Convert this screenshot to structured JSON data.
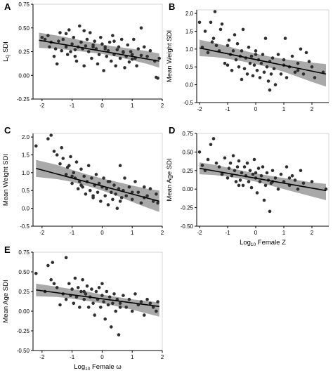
{
  "colors": {
    "point": "#2f2f2f",
    "fit_line": "#000000",
    "band": "#9a9a9a",
    "frame": "#000000"
  },
  "chart_data": [
    {
      "type": "scatter",
      "panel": "A",
      "ylabel": "L",
      "ylabel_sub": "Q",
      "ylabel_rest": " SDI",
      "xlabel": "",
      "xlim": [
        -2.3,
        2.0
      ],
      "ylim": [
        -0.25,
        0.75
      ],
      "xticks": [
        -2,
        -1,
        0,
        1,
        2
      ],
      "xtick_labels": [
        "-2",
        "-1",
        "0",
        "1",
        "2"
      ],
      "yticks": [
        -0.25,
        0,
        0.25,
        0.5,
        0.75
      ],
      "ytick_labels": [
        "-0.25",
        "0.00",
        "0.25",
        "0.50",
        "0.75"
      ],
      "fit": {
        "x": [
          -2.1,
          1.9
        ],
        "y": [
          0.37,
          0.15
        ]
      },
      "band": {
        "x": [
          -2.1,
          -1.5,
          -1,
          -0.5,
          0,
          0.5,
          1,
          1.5,
          1.9
        ],
        "lower": [
          0.29,
          0.28,
          0.265,
          0.245,
          0.225,
          0.195,
          0.16,
          0.12,
          0.08
        ],
        "upper": [
          0.45,
          0.42,
          0.39,
          0.355,
          0.325,
          0.3,
          0.28,
          0.255,
          0.23
        ]
      },
      "points": {
        "x": [
          -2.0,
          -1.9,
          -1.8,
          -1.75,
          -1.7,
          -1.6,
          -1.55,
          -1.5,
          -1.45,
          -1.4,
          -1.35,
          -1.3,
          -1.2,
          -1.15,
          -1.1,
          -1.05,
          -1.0,
          -0.95,
          -0.9,
          -0.85,
          -0.8,
          -0.75,
          -0.7,
          -0.65,
          -0.6,
          -0.55,
          -0.5,
          -0.45,
          -0.4,
          -0.35,
          -0.3,
          -0.25,
          -0.2,
          -0.15,
          -0.1,
          -0.05,
          0.0,
          0.05,
          0.1,
          0.15,
          0.2,
          0.25,
          0.3,
          0.35,
          0.4,
          0.45,
          0.5,
          0.55,
          0.6,
          0.65,
          0.7,
          0.75,
          0.8,
          0.85,
          0.9,
          0.95,
          1.0,
          1.05,
          1.1,
          1.15,
          1.2,
          1.3,
          1.4,
          1.5,
          1.6,
          1.75,
          1.8,
          1.85,
          1.9,
          -1.2,
          -0.9,
          -0.6,
          -0.3,
          0.1,
          0.4,
          0.7,
          1.0,
          1.3
        ],
        "y": [
          0.4,
          0.38,
          0.42,
          0.3,
          0.35,
          0.2,
          0.28,
          0.12,
          0.36,
          0.45,
          0.26,
          0.38,
          0.3,
          0.22,
          0.48,
          0.25,
          0.33,
          0.4,
          0.27,
          0.15,
          0.3,
          0.52,
          0.35,
          0.28,
          0.1,
          0.31,
          0.38,
          0.25,
          0.45,
          0.18,
          0.3,
          0.36,
          0.28,
          0.12,
          0.22,
          0.4,
          0.33,
          0.05,
          0.3,
          0.2,
          0.26,
          0.35,
          0.15,
          0.42,
          0.22,
          0.1,
          0.27,
          0.3,
          0.18,
          0.38,
          0.25,
          0.08,
          0.2,
          0.32,
          0.14,
          0.25,
          0.22,
          0.38,
          0.18,
          0.1,
          0.28,
          0.5,
          0.3,
          0.2,
          0.26,
          0.15,
          -0.02,
          -0.03,
          0.18,
          0.44,
          0.2,
          0.47,
          0.32,
          0.28,
          0.36,
          0.24,
          0.17,
          0.21
        ]
      }
    },
    {
      "type": "scatter",
      "panel": "B",
      "ylabel": "Mean Weight SDI",
      "xlabel": "",
      "xlim": [
        -2.1,
        2.6
      ],
      "ylim": [
        -0.5,
        2.1
      ],
      "xticks": [
        -2,
        -1,
        0,
        1,
        2
      ],
      "xtick_labels": [
        "-2",
        "-1",
        "0",
        "1",
        "2"
      ],
      "yticks": [
        -0.5,
        0,
        0.5,
        1,
        1.5,
        2
      ],
      "ytick_labels": [
        "-0.5",
        "0.0",
        "0.5",
        "1.0",
        "1.5",
        "2.0"
      ],
      "fit": {
        "x": [
          -2.0,
          2.5
        ],
        "y": [
          1.03,
          0.3
        ]
      },
      "band": {
        "x": [
          -2.0,
          -1.5,
          -1,
          -0.5,
          0,
          0.5,
          1,
          1.5,
          2.0,
          2.5
        ],
        "lower": [
          0.8,
          0.78,
          0.73,
          0.66,
          0.58,
          0.48,
          0.36,
          0.22,
          0.08,
          -0.05
        ],
        "upper": [
          1.26,
          1.18,
          1.08,
          0.97,
          0.87,
          0.79,
          0.72,
          0.67,
          0.62,
          0.58
        ]
      },
      "points": {
        "x": [
          -2.0,
          -1.9,
          -1.8,
          -1.7,
          -1.6,
          -1.55,
          -1.5,
          -1.45,
          -1.4,
          -1.3,
          -1.25,
          -1.2,
          -1.1,
          -1.0,
          -0.95,
          -0.9,
          -0.85,
          -0.8,
          -0.75,
          -0.7,
          -0.65,
          -0.6,
          -0.55,
          -0.5,
          -0.45,
          -0.4,
          -0.35,
          -0.3,
          -0.25,
          -0.2,
          -0.15,
          -0.1,
          -0.05,
          0.0,
          0.05,
          0.1,
          0.15,
          0.2,
          0.25,
          0.3,
          0.35,
          0.4,
          0.45,
          0.5,
          0.55,
          0.6,
          0.65,
          0.7,
          0.8,
          0.9,
          1.0,
          1.05,
          1.1,
          1.2,
          1.3,
          1.4,
          1.5,
          1.6,
          1.7,
          1.8,
          1.9,
          2.0,
          2.1,
          2.4,
          -1.0,
          -0.5,
          0.0,
          0.5,
          1.0,
          1.5
        ],
        "y": [
          1.75,
          1.05,
          1.5,
          0.9,
          1.75,
          1.2,
          1.3,
          2.05,
          1.1,
          0.95,
          1.55,
          1.7,
          0.6,
          1.1,
          1.25,
          0.85,
          0.4,
          0.95,
          1.4,
          0.7,
          1.15,
          0.5,
          0.8,
          0.95,
          1.55,
          0.45,
          0.75,
          0.3,
          1.05,
          0.6,
          0.8,
          0.25,
          0.55,
          0.95,
          0.4,
          0.7,
          0.2,
          0.6,
          0.85,
          0.35,
          1.3,
          0.5,
          0.1,
          0.65,
          0.3,
          0.75,
          0.45,
          0.0,
          0.85,
          0.3,
          0.55,
          1.3,
          0.2,
          0.5,
          0.8,
          0.35,
          0.6,
          1.0,
          0.3,
          0.9,
          0.65,
          0.5,
          0.2,
          0.35,
          0.55,
          0.15,
          0.85,
          -0.15,
          0.7,
          0.4
        ]
      }
    },
    {
      "type": "scatter",
      "panel": "C",
      "ylabel": "Mean Weight SDI",
      "xlabel": "",
      "xlim": [
        -2.3,
        2.0
      ],
      "ylim": [
        -0.5,
        2.1
      ],
      "xticks": [
        -2,
        -1,
        0,
        1,
        2
      ],
      "xtick_labels": [
        "-2",
        "-1",
        "0",
        "1",
        "2"
      ],
      "yticks": [
        -0.5,
        0,
        0.5,
        1,
        1.5,
        2
      ],
      "ytick_labels": [
        "-0.5",
        "0.0",
        "0.5",
        "1.0",
        "1.5",
        "2.0"
      ],
      "fit": {
        "x": [
          -2.2,
          1.9
        ],
        "y": [
          1.12,
          0.2
        ]
      },
      "band": {
        "x": [
          -2.2,
          -1.5,
          -1,
          -0.5,
          0,
          0.5,
          1,
          1.5,
          1.9
        ],
        "lower": [
          0.88,
          0.82,
          0.74,
          0.63,
          0.5,
          0.35,
          0.18,
          0.02,
          -0.1
        ],
        "upper": [
          1.36,
          1.22,
          1.08,
          0.95,
          0.84,
          0.74,
          0.64,
          0.55,
          0.5
        ]
      },
      "points": {
        "x": [
          -2.2,
          -1.8,
          -1.7,
          -1.6,
          -1.5,
          -1.4,
          -1.35,
          -1.3,
          -1.2,
          -1.15,
          -1.1,
          -1.05,
          -1.0,
          -0.95,
          -0.9,
          -0.85,
          -0.8,
          -0.75,
          -0.7,
          -0.65,
          -0.6,
          -0.55,
          -0.5,
          -0.45,
          -0.4,
          -0.35,
          -0.3,
          -0.25,
          -0.2,
          -0.15,
          -0.1,
          -0.05,
          0.0,
          0.05,
          0.1,
          0.15,
          0.2,
          0.25,
          0.3,
          0.35,
          0.4,
          0.45,
          0.5,
          0.55,
          0.6,
          0.65,
          0.7,
          0.75,
          0.8,
          0.9,
          1.0,
          1.1,
          1.2,
          1.3,
          1.4,
          1.5,
          1.6,
          1.7,
          1.8,
          1.85,
          -1.0,
          -0.7,
          -0.3,
          0.2,
          0.6,
          1.0,
          1.4
        ],
        "y": [
          1.75,
          1.95,
          2.05,
          1.6,
          1.5,
          1.25,
          1.7,
          1.4,
          0.95,
          1.15,
          1.2,
          1.45,
          0.7,
          1.0,
          0.85,
          1.3,
          0.55,
          0.75,
          1.1,
          0.6,
          0.9,
          0.4,
          0.75,
          1.2,
          0.5,
          0.85,
          0.3,
          0.65,
          0.95,
          0.45,
          0.7,
          0.2,
          0.6,
          0.85,
          0.35,
          0.55,
          0.1,
          0.75,
          0.45,
          0.25,
          0.65,
          0.4,
          0.0,
          0.55,
          1.2,
          0.3,
          0.5,
          0.85,
          0.35,
          0.6,
          0.25,
          0.75,
          0.45,
          0.15,
          0.6,
          0.35,
          0.55,
          0.2,
          0.4,
          0.15,
          0.9,
          0.65,
          0.35,
          0.75,
          0.2,
          0.45,
          0.3
        ]
      }
    },
    {
      "type": "scatter",
      "panel": "D",
      "ylabel": "Mean Age SDI",
      "xlabel": "Log",
      "xlabel_sub": "10",
      "xlabel_rest": " Female Z",
      "xlim": [
        -2.1,
        2.6
      ],
      "ylim": [
        -0.5,
        0.75
      ],
      "xticks": [
        -2,
        -1,
        0,
        1,
        2
      ],
      "xtick_labels": [
        "-2",
        "-1",
        "0",
        "1",
        "2"
      ],
      "yticks": [
        -0.5,
        -0.25,
        0,
        0.25,
        0.5,
        0.75
      ],
      "ytick_labels": [
        "-0.50",
        "-0.25",
        "0.00",
        "0.25",
        "0.50",
        "0.75"
      ],
      "fit": {
        "x": [
          -2.0,
          2.5
        ],
        "y": [
          0.28,
          -0.02
        ]
      },
      "band": {
        "x": [
          -2.0,
          -1.5,
          -1,
          -0.5,
          0,
          0.5,
          1,
          1.5,
          2.0,
          2.5
        ],
        "lower": [
          0.2,
          0.19,
          0.17,
          0.14,
          0.1,
          0.05,
          0.0,
          -0.05,
          -0.1,
          -0.15
        ],
        "upper": [
          0.36,
          0.33,
          0.29,
          0.25,
          0.21,
          0.18,
          0.15,
          0.12,
          0.09,
          0.07
        ]
      },
      "points": {
        "x": [
          -2.0,
          -1.9,
          -1.8,
          -1.7,
          -1.6,
          -1.5,
          -1.4,
          -1.3,
          -1.2,
          -1.1,
          -1.0,
          -0.95,
          -0.9,
          -0.85,
          -0.8,
          -0.75,
          -0.7,
          -0.65,
          -0.6,
          -0.55,
          -0.5,
          -0.45,
          -0.4,
          -0.35,
          -0.3,
          -0.25,
          -0.2,
          -0.15,
          -0.1,
          -0.05,
          0.0,
          0.05,
          0.1,
          0.15,
          0.2,
          0.25,
          0.3,
          0.35,
          0.4,
          0.45,
          0.5,
          0.55,
          0.6,
          0.7,
          0.8,
          0.9,
          1.0,
          1.1,
          1.2,
          1.3,
          1.4,
          1.5,
          1.6,
          1.7,
          2.0,
          2.5,
          -1.2,
          -0.6,
          0.0,
          0.6,
          1.2
        ],
        "y": [
          0.5,
          0.32,
          0.25,
          0.4,
          0.6,
          0.68,
          0.35,
          0.3,
          0.2,
          0.42,
          0.15,
          0.28,
          0.35,
          0.18,
          0.45,
          0.25,
          0.1,
          0.3,
          0.38,
          0.12,
          0.22,
          0.05,
          0.3,
          0.18,
          0.35,
          0.1,
          0.25,
          0.02,
          0.2,
          0.4,
          0.15,
          -0.05,
          0.28,
          0.1,
          0.18,
          0.3,
          -0.15,
          0.05,
          0.22,
          0.12,
          -0.3,
          0.08,
          0.25,
          0.15,
          0.0,
          0.2,
          0.1,
          0.3,
          0.05,
          0.18,
          0.12,
          0.0,
          0.25,
          0.08,
          0.1,
          0.0,
          0.2,
          0.05,
          0.22,
          0.1,
          0.15
        ]
      }
    },
    {
      "type": "scatter",
      "panel": "E",
      "ylabel": "Mean Age SDI",
      "xlabel": "Log",
      "xlabel_sub": "10",
      "xlabel_rest": " Female ω",
      "xlim": [
        -2.3,
        2.0
      ],
      "ylim": [
        -0.5,
        0.75
      ],
      "xticks": [
        -2,
        -1,
        0,
        1,
        2
      ],
      "xtick_labels": [
        "-2",
        "-1",
        "0",
        "1",
        "2"
      ],
      "yticks": [
        -0.5,
        -0.25,
        0,
        0.25,
        0.5,
        0.75
      ],
      "ytick_labels": [
        "-0.50",
        "-0.25",
        "0.00",
        "0.25",
        "0.50",
        "0.75"
      ],
      "fit": {
        "x": [
          -2.2,
          1.9
        ],
        "y": [
          0.27,
          0.06
        ]
      },
      "band": {
        "x": [
          -2.2,
          -1.5,
          -1,
          -0.5,
          0,
          0.5,
          1,
          1.5,
          1.9
        ],
        "lower": [
          0.19,
          0.18,
          0.16,
          0.13,
          0.1,
          0.06,
          0.02,
          -0.03,
          -0.07
        ],
        "upper": [
          0.35,
          0.31,
          0.28,
          0.25,
          0.21,
          0.18,
          0.15,
          0.13,
          0.11
        ]
      },
      "points": {
        "x": [
          -2.2,
          -1.9,
          -1.8,
          -1.7,
          -1.65,
          -1.6,
          -1.5,
          -1.4,
          -1.3,
          -1.2,
          -1.1,
          -1.05,
          -1.0,
          -0.95,
          -0.9,
          -0.85,
          -0.8,
          -0.75,
          -0.7,
          -0.65,
          -0.6,
          -0.55,
          -0.5,
          -0.45,
          -0.4,
          -0.35,
          -0.3,
          -0.25,
          -0.2,
          -0.15,
          -0.1,
          -0.05,
          0.0,
          0.05,
          0.1,
          0.15,
          0.2,
          0.25,
          0.3,
          0.35,
          0.4,
          0.45,
          0.5,
          0.55,
          0.6,
          0.7,
          0.8,
          0.9,
          1.0,
          1.1,
          1.2,
          1.3,
          1.4,
          1.5,
          1.6,
          1.7,
          1.8,
          1.85,
          -1.2,
          -0.6,
          0.0,
          0.6
        ],
        "y": [
          0.48,
          0.25,
          0.58,
          0.4,
          0.62,
          0.35,
          0.3,
          0.08,
          0.22,
          0.68,
          0.35,
          0.2,
          0.28,
          0.1,
          0.42,
          0.18,
          0.3,
          0.05,
          0.25,
          0.4,
          0.15,
          0.22,
          0.32,
          0.05,
          0.18,
          0.28,
          0.1,
          -0.05,
          0.25,
          0.15,
          0.3,
          0.05,
          0.2,
          0.12,
          -0.1,
          0.25,
          0.08,
          0.18,
          -0.2,
          0.1,
          0.22,
          0.0,
          0.15,
          -0.3,
          0.1,
          0.2,
          0.05,
          0.15,
          0.0,
          0.22,
          0.08,
          0.12,
          -0.05,
          0.15,
          0.1,
          0.05,
          0.0,
          0.12,
          0.15,
          0.25,
          0.35,
          0.05
        ]
      }
    }
  ]
}
